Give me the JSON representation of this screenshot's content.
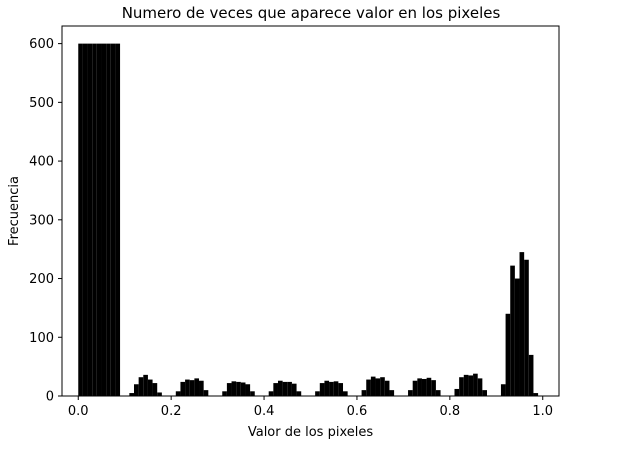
{
  "chart_data": {
    "type": "bar",
    "title": "Numero de veces que aparece valor en los pixeles",
    "xlabel": "Valor de los pixeles",
    "ylabel": "Frecuencia",
    "xlim": [
      -0.035,
      1.035
    ],
    "ylim": [
      0,
      630
    ],
    "xticks": [
      0.0,
      0.2,
      0.4,
      0.6,
      0.8,
      1.0
    ],
    "xtick_labels": [
      "0.0",
      "0.2",
      "0.4",
      "0.6",
      "0.8",
      "1.0"
    ],
    "yticks": [
      0,
      100,
      200,
      300,
      400,
      500,
      600
    ],
    "ytick_labels": [
      "0",
      "100",
      "200",
      "300",
      "400",
      "500",
      "600"
    ],
    "grid": false,
    "legend": "none",
    "bar_color": "#000000",
    "series": [
      {
        "values": [
          {
            "x": 0.005,
            "y": 600
          },
          {
            "x": 0.015,
            "y": 600
          },
          {
            "x": 0.025,
            "y": 600
          },
          {
            "x": 0.035,
            "y": 600
          },
          {
            "x": 0.045,
            "y": 600
          },
          {
            "x": 0.055,
            "y": 600
          },
          {
            "x": 0.065,
            "y": 600
          },
          {
            "x": 0.075,
            "y": 600
          },
          {
            "x": 0.085,
            "y": 600
          },
          {
            "x": 0.115,
            "y": 5
          },
          {
            "x": 0.125,
            "y": 20
          },
          {
            "x": 0.135,
            "y": 32
          },
          {
            "x": 0.145,
            "y": 36
          },
          {
            "x": 0.155,
            "y": 28
          },
          {
            "x": 0.165,
            "y": 22
          },
          {
            "x": 0.175,
            "y": 6
          },
          {
            "x": 0.215,
            "y": 8
          },
          {
            "x": 0.225,
            "y": 24
          },
          {
            "x": 0.235,
            "y": 28
          },
          {
            "x": 0.245,
            "y": 27
          },
          {
            "x": 0.255,
            "y": 30
          },
          {
            "x": 0.265,
            "y": 26
          },
          {
            "x": 0.275,
            "y": 10
          },
          {
            "x": 0.315,
            "y": 8
          },
          {
            "x": 0.325,
            "y": 22
          },
          {
            "x": 0.335,
            "y": 25
          },
          {
            "x": 0.345,
            "y": 24
          },
          {
            "x": 0.355,
            "y": 23
          },
          {
            "x": 0.365,
            "y": 20
          },
          {
            "x": 0.375,
            "y": 8
          },
          {
            "x": 0.415,
            "y": 8
          },
          {
            "x": 0.425,
            "y": 22
          },
          {
            "x": 0.435,
            "y": 26
          },
          {
            "x": 0.445,
            "y": 24
          },
          {
            "x": 0.455,
            "y": 24
          },
          {
            "x": 0.465,
            "y": 21
          },
          {
            "x": 0.475,
            "y": 8
          },
          {
            "x": 0.515,
            "y": 8
          },
          {
            "x": 0.525,
            "y": 22
          },
          {
            "x": 0.535,
            "y": 26
          },
          {
            "x": 0.545,
            "y": 24
          },
          {
            "x": 0.555,
            "y": 25
          },
          {
            "x": 0.565,
            "y": 22
          },
          {
            "x": 0.575,
            "y": 8
          },
          {
            "x": 0.615,
            "y": 10
          },
          {
            "x": 0.625,
            "y": 28
          },
          {
            "x": 0.635,
            "y": 33
          },
          {
            "x": 0.645,
            "y": 30
          },
          {
            "x": 0.655,
            "y": 32
          },
          {
            "x": 0.665,
            "y": 26
          },
          {
            "x": 0.675,
            "y": 10
          },
          {
            "x": 0.715,
            "y": 10
          },
          {
            "x": 0.725,
            "y": 26
          },
          {
            "x": 0.735,
            "y": 30
          },
          {
            "x": 0.745,
            "y": 29
          },
          {
            "x": 0.755,
            "y": 31
          },
          {
            "x": 0.765,
            "y": 27
          },
          {
            "x": 0.775,
            "y": 10
          },
          {
            "x": 0.815,
            "y": 12
          },
          {
            "x": 0.825,
            "y": 32
          },
          {
            "x": 0.835,
            "y": 36
          },
          {
            "x": 0.845,
            "y": 35
          },
          {
            "x": 0.855,
            "y": 38
          },
          {
            "x": 0.865,
            "y": 30
          },
          {
            "x": 0.875,
            "y": 10
          },
          {
            "x": 0.915,
            "y": 20
          },
          {
            "x": 0.925,
            "y": 140
          },
          {
            "x": 0.935,
            "y": 222
          },
          {
            "x": 0.945,
            "y": 200
          },
          {
            "x": 0.955,
            "y": 245
          },
          {
            "x": 0.965,
            "y": 232
          },
          {
            "x": 0.975,
            "y": 70
          },
          {
            "x": 0.985,
            "y": 5
          }
        ]
      }
    ]
  }
}
